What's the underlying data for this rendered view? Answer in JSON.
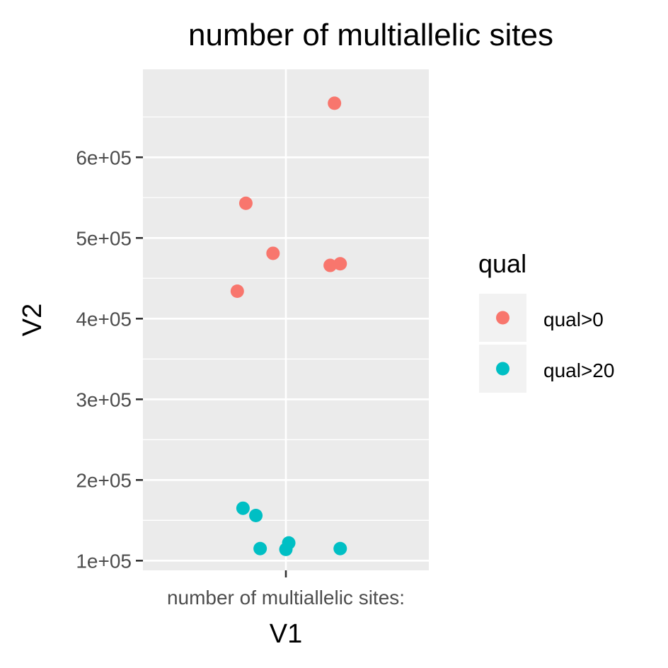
{
  "chart_data": {
    "type": "scatter",
    "title": "number of multiallelic sites",
    "xlabel": "V1",
    "ylabel": "V2",
    "x_categories": [
      "number of multiallelic sites:"
    ],
    "x_axis_note": "points are horizontally jittered around the single category",
    "yticks": [
      100000,
      200000,
      300000,
      400000,
      500000,
      600000
    ],
    "ytick_labels": [
      "1e+05",
      "2e+05",
      "3e+05",
      "4e+05",
      "5e+05",
      "6e+05"
    ],
    "ylim": [
      88000,
      709000
    ],
    "grid": true,
    "legend": {
      "title": "qual",
      "position": "right"
    },
    "series": [
      {
        "name": "qual>0",
        "color": "#F8766D",
        "points": [
          {
            "jitter": -0.28,
            "y": 543000
          },
          {
            "jitter": -0.34,
            "y": 434000
          },
          {
            "jitter": -0.09,
            "y": 481000
          },
          {
            "jitter": 0.34,
            "y": 667000
          },
          {
            "jitter": 0.31,
            "y": 466000
          },
          {
            "jitter": 0.38,
            "y": 468000
          }
        ]
      },
      {
        "name": "qual>20",
        "color": "#00BFC4",
        "points": [
          {
            "jitter": -0.3,
            "y": 165000
          },
          {
            "jitter": -0.21,
            "y": 156000
          },
          {
            "jitter": -0.18,
            "y": 115000
          },
          {
            "jitter": 0.0,
            "y": 114000
          },
          {
            "jitter": 0.02,
            "y": 122000
          },
          {
            "jitter": 0.38,
            "y": 115000
          }
        ]
      }
    ]
  },
  "style": {
    "panel_background": "#EBEBEB",
    "grid_color": "#FFFFFF",
    "tick_color": "#333333",
    "legend_key_background": "#F2F2F2"
  }
}
